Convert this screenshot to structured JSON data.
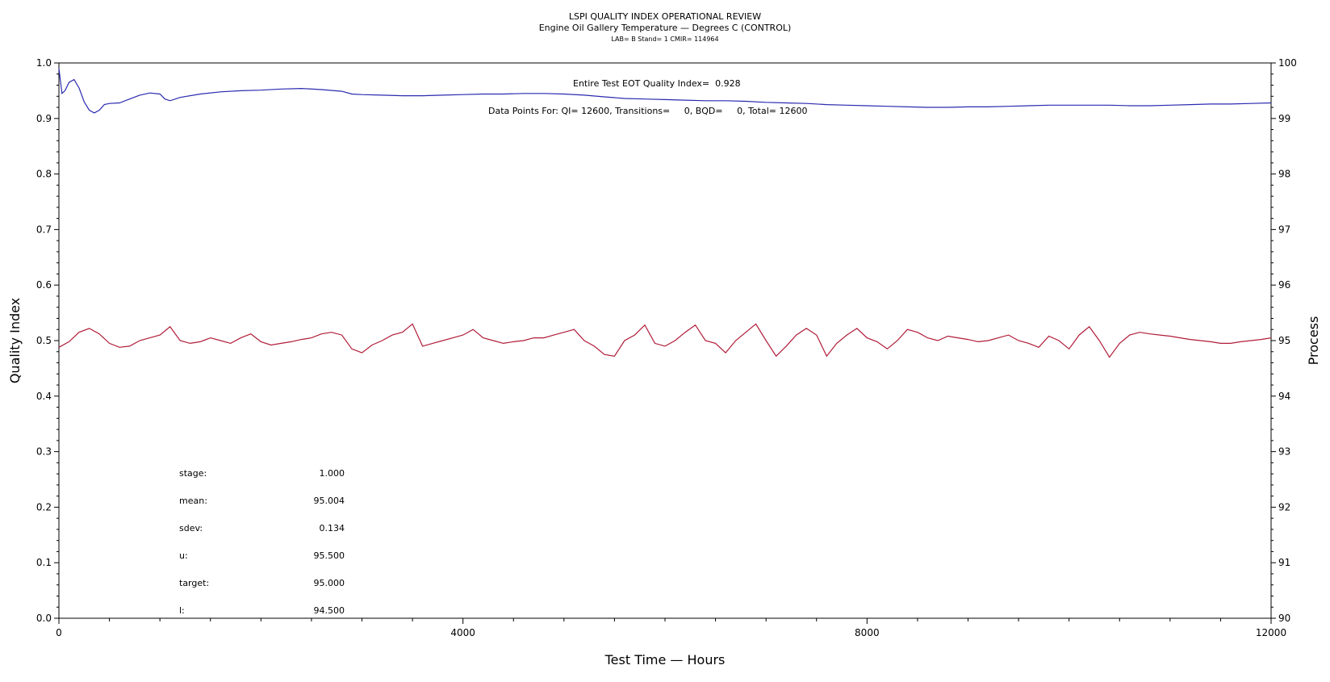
{
  "chart_data": {
    "type": "line",
    "title": "LSPI QUALITY INDEX OPERATIONAL REVIEW",
    "subtitle": "Engine Oil Gallery Temperature — Degrees C (CONTROL)",
    "subtitle2": "LAB= B Stand= 1 CMIR= 114964",
    "xlabel": "Test Time — Hours",
    "ylabel_left": "Quality Index",
    "ylabel_right": "Process",
    "xlim": [
      0,
      12000
    ],
    "ylim_left": [
      0.0,
      1.0
    ],
    "ylim_right": [
      90,
      100
    ],
    "x_ticks": [
      "0",
      "4000",
      "8000",
      "12000"
    ],
    "y_ticks_left": [
      "0.0",
      "0.1",
      "0.2",
      "0.3",
      "0.4",
      "0.5",
      "0.6",
      "0.7",
      "0.8",
      "0.9",
      "1.0"
    ],
    "y_ticks_right": [
      "90",
      "91",
      "92",
      "93",
      "94",
      "95",
      "96",
      "97",
      "98",
      "99",
      "100"
    ],
    "annotations": {
      "qi_text": "Entire Test EOT Quality Index=  0.928",
      "points_text": "Data Points For: QI= 12600, Transitions=     0, BQD=     0, Total= 12600"
    },
    "stats": [
      {
        "label": "stage:",
        "value": "1.000"
      },
      {
        "label": "mean:",
        "value": "95.004"
      },
      {
        "label": "sdev:",
        "value": "0.134"
      },
      {
        "label": "u:",
        "value": "95.500"
      },
      {
        "label": "target:",
        "value": "95.000"
      },
      {
        "label": "l:",
        "value": "94.500"
      }
    ],
    "series": [
      {
        "axis": "left",
        "color": "#2a2ab0",
        "x": [
          0,
          30,
          60,
          100,
          150,
          200,
          250,
          300,
          350,
          400,
          450,
          500,
          600,
          700,
          800,
          900,
          1000,
          1050,
          1100,
          1200,
          1400,
          1600,
          1800,
          2000,
          2200,
          2400,
          2600,
          2800,
          2900,
          3000,
          3200,
          3400,
          3600,
          3800,
          4000,
          4200,
          4400,
          4600,
          4800,
          5000,
          5200,
          5400,
          5600,
          5800,
          6000,
          6200,
          6400,
          6600,
          6800,
          7000,
          7200,
          7400,
          7600,
          7800,
          8000,
          8200,
          8400,
          8600,
          8800,
          9000,
          9200,
          9400,
          9600,
          9800,
          10000,
          10200,
          10400,
          10600,
          10800,
          11000,
          11200,
          11400,
          11600,
          11800,
          12000
        ],
        "values": [
          0.99,
          0.945,
          0.95,
          0.965,
          0.97,
          0.955,
          0.93,
          0.915,
          0.91,
          0.915,
          0.925,
          0.927,
          0.928,
          0.935,
          0.942,
          0.946,
          0.944,
          0.935,
          0.932,
          0.938,
          0.944,
          0.948,
          0.95,
          0.951,
          0.953,
          0.954,
          0.952,
          0.949,
          0.944,
          0.943,
          0.942,
          0.941,
          0.941,
          0.942,
          0.943,
          0.944,
          0.944,
          0.945,
          0.945,
          0.944,
          0.942,
          0.939,
          0.936,
          0.935,
          0.934,
          0.933,
          0.932,
          0.932,
          0.931,
          0.929,
          0.928,
          0.927,
          0.925,
          0.924,
          0.923,
          0.922,
          0.921,
          0.92,
          0.92,
          0.921,
          0.921,
          0.922,
          0.923,
          0.924,
          0.924,
          0.924,
          0.924,
          0.923,
          0.923,
          0.924,
          0.925,
          0.926,
          0.926,
          0.927,
          0.928
        ]
      },
      {
        "axis": "right",
        "color": "#b01c38",
        "x": [
          0,
          100,
          200,
          300,
          400,
          500,
          600,
          700,
          800,
          900,
          1000,
          1100,
          1200,
          1300,
          1400,
          1500,
          1600,
          1700,
          1800,
          1900,
          2000,
          2100,
          2200,
          2300,
          2400,
          2500,
          2600,
          2700,
          2800,
          2900,
          3000,
          3100,
          3200,
          3300,
          3400,
          3500,
          3600,
          3700,
          3800,
          3900,
          4000,
          4100,
          4200,
          4300,
          4400,
          4500,
          4600,
          4700,
          4800,
          4900,
          5000,
          5100,
          5200,
          5300,
          5400,
          5500,
          5600,
          5700,
          5800,
          5900,
          6000,
          6100,
          6200,
          6300,
          6400,
          6500,
          6600,
          6700,
          6800,
          6900,
          7000,
          7100,
          7200,
          7300,
          7400,
          7500,
          7600,
          7700,
          7800,
          7900,
          8000,
          8100,
          8200,
          8300,
          8400,
          8500,
          8600,
          8700,
          8800,
          8900,
          9000,
          9100,
          9200,
          9300,
          9400,
          9500,
          9600,
          9700,
          9800,
          9900,
          10000,
          10100,
          10200,
          10300,
          10400,
          10500,
          10600,
          10700,
          10800,
          10900,
          11000,
          11100,
          11200,
          11300,
          11400,
          11500,
          11600,
          11700,
          11800,
          11900,
          12000
        ],
        "values": [
          94.88,
          94.98,
          95.15,
          95.22,
          95.12,
          94.95,
          94.88,
          94.9,
          95.0,
          95.05,
          95.1,
          95.25,
          95.0,
          94.95,
          94.98,
          95.05,
          95.0,
          94.95,
          95.05,
          95.12,
          94.98,
          94.92,
          94.95,
          94.98,
          95.02,
          95.05,
          95.12,
          95.15,
          95.1,
          94.85,
          94.78,
          94.92,
          95.0,
          95.1,
          95.15,
          95.3,
          94.9,
          94.95,
          95.0,
          95.05,
          95.1,
          95.2,
          95.05,
          95.0,
          94.95,
          94.98,
          95.0,
          95.05,
          95.05,
          95.1,
          95.15,
          95.2,
          95.0,
          94.9,
          94.75,
          94.72,
          95.0,
          95.1,
          95.28,
          94.95,
          94.9,
          95.0,
          95.15,
          95.28,
          95.0,
          94.95,
          94.78,
          95.0,
          95.15,
          95.3,
          95.0,
          94.72,
          94.9,
          95.1,
          95.22,
          95.1,
          94.72,
          94.95,
          95.1,
          95.22,
          95.05,
          94.98,
          94.85,
          95.0,
          95.2,
          95.15,
          95.05,
          95.0,
          95.08,
          95.05,
          95.02,
          94.98,
          95.0,
          95.05,
          95.1,
          95.0,
          94.95,
          94.88,
          95.08,
          95.0,
          94.85,
          95.1,
          95.25,
          95.0,
          94.7,
          94.95,
          95.1,
          95.15,
          95.12,
          95.1,
          95.08,
          95.05,
          95.02,
          95.0,
          94.98,
          94.95,
          94.95,
          94.98,
          95.0,
          95.02,
          95.05
        ]
      }
    ]
  }
}
